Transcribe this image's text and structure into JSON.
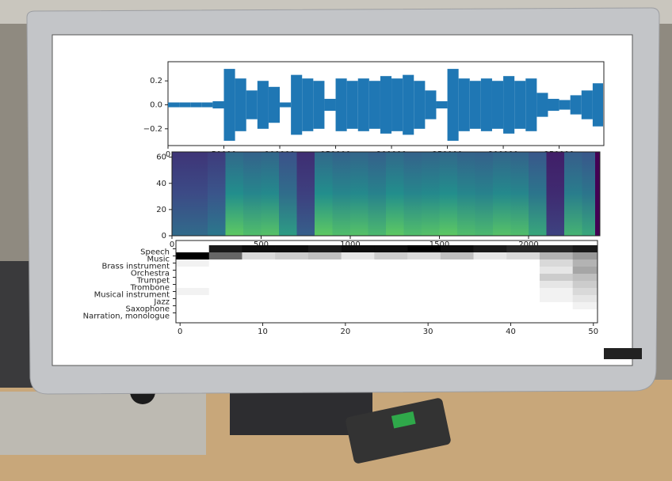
{
  "chart_data": [
    {
      "type": "waveform",
      "color": "#1f77b4",
      "x": [
        0,
        10000,
        20000,
        30000,
        40000,
        50000,
        60000,
        70000,
        80000,
        90000,
        100000,
        110000,
        120000,
        130000,
        140000,
        150000,
        160000,
        170000,
        180000,
        190000,
        200000,
        210000,
        220000,
        230000,
        240000,
        250000,
        260000,
        270000,
        280000,
        290000,
        300000,
        310000,
        320000,
        330000,
        340000,
        350000,
        360000,
        370000,
        380000
      ],
      "values": [
        0.02,
        0.02,
        0.02,
        0.02,
        0.03,
        0.3,
        0.22,
        0.12,
        0.2,
        0.15,
        0.02,
        0.25,
        0.22,
        0.2,
        0.05,
        0.22,
        0.2,
        0.22,
        0.2,
        0.24,
        0.22,
        0.25,
        0.2,
        0.12,
        0.03,
        0.3,
        0.22,
        0.2,
        0.22,
        0.2,
        0.24,
        0.2,
        0.22,
        0.1,
        0.05,
        0.04,
        0.08,
        0.12,
        0.18
      ],
      "xlim": [
        0,
        390000
      ],
      "ylim": [
        -0.34,
        0.36
      ],
      "xticks": [
        0,
        50000,
        100000,
        150000,
        200000,
        250000,
        300000,
        350000
      ],
      "yticks": [
        0.2,
        {
          "value": 0,
          "label": "0.0"
        },
        {
          "value": -0.2,
          "label": "−0.2"
        }
      ]
    },
    {
      "type": "spectrogram",
      "x": [
        0,
        100,
        200,
        300,
        400,
        500,
        600,
        700,
        800,
        900,
        1000,
        1100,
        1200,
        1300,
        1400,
        1500,
        1600,
        1700,
        1800,
        1900,
        2000,
        2100,
        2200,
        2300
      ],
      "values": [
        0.35,
        0.35,
        0.4,
        0.75,
        0.7,
        0.72,
        0.55,
        0.3,
        0.75,
        0.7,
        0.72,
        0.68,
        0.75,
        0.7,
        0.72,
        0.75,
        0.7,
        0.68,
        0.72,
        0.7,
        0.6,
        0.2,
        0.65,
        0.6
      ],
      "xlim": [
        0,
        2400
      ],
      "ylim": [
        0,
        64
      ],
      "xticks": [
        0,
        500,
        1000,
        1500,
        2000
      ],
      "yticks": [
        0,
        20,
        40,
        60
      ]
    },
    {
      "type": "heatmap",
      "categories": [
        "Speech",
        "Music",
        "Brass instrument",
        "Orchestra",
        "Trumpet",
        "Trombone",
        "Musical instrument",
        "Jazz",
        "Saxophone",
        "Narration, monologue"
      ],
      "x": [
        0,
        4,
        8,
        12,
        16,
        20,
        24,
        28,
        32,
        36,
        40,
        44,
        48
      ],
      "xlim": [
        -0.5,
        50.5
      ],
      "xticks": [
        0,
        10,
        20,
        30,
        40,
        50
      ],
      "series": [
        {
          "name": "Speech",
          "values": [
            0,
            0.9,
            0.95,
            0.95,
            0.9,
            0.95,
            0.95,
            1,
            0.95,
            0.9,
            0.85,
            0.85,
            0.9
          ]
        },
        {
          "name": "Music",
          "values": [
            1,
            0.6,
            0.15,
            0.2,
            0.25,
            0.1,
            0.2,
            0.15,
            0.25,
            0.1,
            0.15,
            0.3,
            0.4
          ]
        },
        {
          "name": "Brass instrument",
          "values": [
            0.05,
            0,
            0,
            0,
            0,
            0,
            0,
            0,
            0,
            0,
            0,
            0.15,
            0.3
          ]
        },
        {
          "name": "Orchestra",
          "values": [
            0,
            0,
            0,
            0,
            0,
            0,
            0,
            0,
            0,
            0,
            0,
            0.1,
            0.35
          ]
        },
        {
          "name": "Trumpet",
          "values": [
            0,
            0,
            0,
            0,
            0,
            0,
            0,
            0,
            0,
            0,
            0,
            0.2,
            0.25
          ]
        },
        {
          "name": "Trombone",
          "values": [
            0,
            0,
            0,
            0,
            0,
            0,
            0,
            0,
            0,
            0,
            0,
            0.1,
            0.2
          ]
        },
        {
          "name": "Musical instrument",
          "values": [
            0.05,
            0,
            0,
            0,
            0,
            0,
            0,
            0,
            0,
            0,
            0,
            0.05,
            0.15
          ]
        },
        {
          "name": "Jazz",
          "values": [
            0,
            0,
            0,
            0,
            0,
            0,
            0,
            0,
            0,
            0,
            0,
            0.05,
            0.1
          ]
        },
        {
          "name": "Saxophone",
          "values": [
            0,
            0,
            0,
            0,
            0,
            0,
            0,
            0,
            0,
            0,
            0,
            0,
            0.05
          ]
        },
        {
          "name": "Narration, monologue",
          "values": [
            0,
            0,
            0,
            0,
            0,
            0,
            0,
            0,
            0,
            0,
            0,
            0,
            0
          ]
        }
      ]
    }
  ]
}
